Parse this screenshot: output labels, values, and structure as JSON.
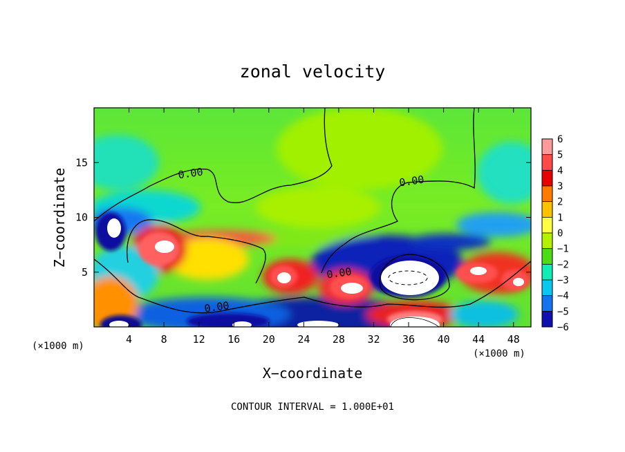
{
  "chart_data": {
    "type": "heatmap",
    "title": "zonal velocity",
    "xlabel": "X−coordinate",
    "ylabel": "Z−coordinate",
    "x_unit_left": "(×1000 m)",
    "x_unit_right": "(×1000 m)",
    "xlim": [
      0,
      50
    ],
    "ylim": [
      0,
      20
    ],
    "xticks": [
      4,
      8,
      12,
      16,
      20,
      24,
      28,
      32,
      36,
      40,
      44,
      48
    ],
    "xtick_labels": [
      "4",
      "8",
      "12",
      "16",
      "20",
      "24",
      "28",
      "32",
      "36",
      "40",
      "44",
      "48"
    ],
    "yticks": [
      5,
      10,
      15
    ],
    "ytick_labels": [
      "5",
      "10",
      "15"
    ],
    "colorbar": {
      "levels": [
        6,
        5,
        4,
        3,
        2,
        1,
        0,
        -1,
        -2,
        -3,
        -4,
        -5,
        -6
      ],
      "labels": [
        "6",
        "5",
        "4",
        "3",
        "2",
        "1",
        "0",
        "−1",
        "−2",
        "−3",
        "−4",
        "−5",
        "−6"
      ],
      "colors": [
        "#ff9a9a",
        "#ff4a4a",
        "#e80000",
        "#ff7a00",
        "#ffc000",
        "#ffff40",
        "#b4f000",
        "#4cdc14",
        "#10ecb4",
        "#08c8f0",
        "#1474f0",
        "#1010b0",
        "#8000b4"
      ]
    },
    "contour_labels": [
      {
        "text": "0.00",
        "x": 11.1,
        "z": 13.7
      },
      {
        "text": "0.00",
        "x": 36.4,
        "z": 13.0
      },
      {
        "text": "0.00",
        "x": 28.1,
        "z": 4.6
      },
      {
        "text": "0.00",
        "x": 14.1,
        "z": 1.5
      }
    ],
    "contour_interval_text": "CONTOUR INTERVAL =  1.000E+01"
  }
}
